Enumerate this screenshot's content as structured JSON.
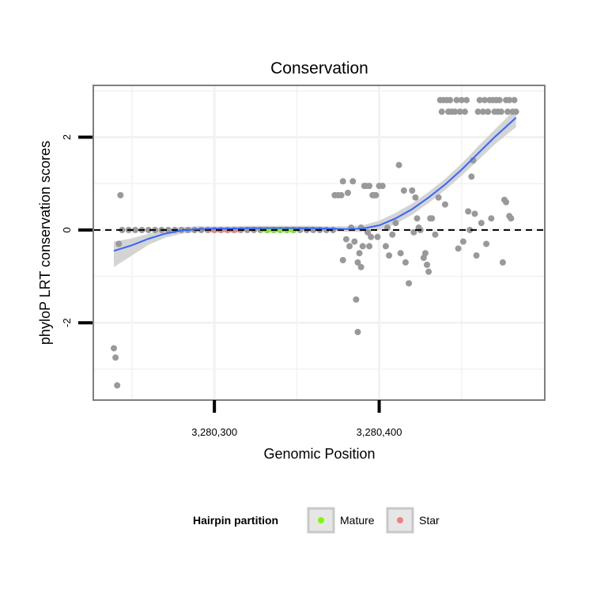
{
  "chart_data": {
    "type": "scatter",
    "title": "Conservation",
    "xlabel": "Genomic Position",
    "ylabel": "phyloP LRT conservation scores",
    "xlim": [
      3280227,
      3280500
    ],
    "ylim": [
      -3.65,
      3.1
    ],
    "x_ticks": [
      {
        "value": 3280300,
        "label": "3,280,300"
      },
      {
        "value": 3280400,
        "label": "3,280,400"
      }
    ],
    "y_ticks": [
      {
        "value": -2,
        "label": "-2"
      },
      {
        "value": 0,
        "label": "0"
      },
      {
        "value": 2,
        "label": "2"
      }
    ],
    "reference_line": {
      "y": 0,
      "style": "dashed"
    },
    "grid": true,
    "points": [
      {
        "x": 3280239,
        "y": -2.55
      },
      {
        "x": 3280240,
        "y": -2.75
      },
      {
        "x": 3280241,
        "y": -3.35
      },
      {
        "x": 3280242,
        "y": -0.3
      },
      {
        "x": 3280243,
        "y": 0.75
      },
      {
        "x": 3280244,
        "y": 0
      },
      {
        "x": 3280248,
        "y": 0
      },
      {
        "x": 3280252,
        "y": 0
      },
      {
        "x": 3280256,
        "y": 0
      },
      {
        "x": 3280260,
        "y": 0
      },
      {
        "x": 3280264,
        "y": 0
      },
      {
        "x": 3280268,
        "y": 0
      },
      {
        "x": 3280272,
        "y": 0
      },
      {
        "x": 3280276,
        "y": 0
      },
      {
        "x": 3280280,
        "y": 0
      },
      {
        "x": 3280284,
        "y": 0
      },
      {
        "x": 3280288,
        "y": 0
      },
      {
        "x": 3280292,
        "y": 0
      },
      {
        "x": 3280296,
        "y": 0
      },
      {
        "x": 3280300,
        "y": 0
      },
      {
        "x": 3280304,
        "y": 0
      },
      {
        "x": 3280308,
        "y": 0
      },
      {
        "x": 3280312,
        "y": 0
      },
      {
        "x": 3280316,
        "y": 0
      },
      {
        "x": 3280320,
        "y": 0
      },
      {
        "x": 3280324,
        "y": 0
      },
      {
        "x": 3280328,
        "y": 0
      },
      {
        "x": 3280332,
        "y": 0
      },
      {
        "x": 3280336,
        "y": 0
      },
      {
        "x": 3280340,
        "y": 0
      },
      {
        "x": 3280344,
        "y": 0
      },
      {
        "x": 3280348,
        "y": 0
      },
      {
        "x": 3280352,
        "y": 0
      },
      {
        "x": 3280356,
        "y": 0
      },
      {
        "x": 3280360,
        "y": 0
      },
      {
        "x": 3280364,
        "y": 0
      },
      {
        "x": 3280368,
        "y": 0
      },
      {
        "x": 3280372,
        "y": 0
      },
      {
        "x": 3280373,
        "y": 0.75
      },
      {
        "x": 3280375,
        "y": 0.75
      },
      {
        "x": 3280377,
        "y": 0.75
      },
      {
        "x": 3280378,
        "y": 1.05
      },
      {
        "x": 3280378,
        "y": -0.65
      },
      {
        "x": 3280380,
        "y": -0.2
      },
      {
        "x": 3280381,
        "y": 0.8
      },
      {
        "x": 3280382,
        "y": -0.35
      },
      {
        "x": 3280383,
        "y": 0.05
      },
      {
        "x": 3280384,
        "y": 1.05
      },
      {
        "x": 3280385,
        "y": -0.25
      },
      {
        "x": 3280386,
        "y": -1.5
      },
      {
        "x": 3280387,
        "y": -2.2
      },
      {
        "x": 3280387,
        "y": -0.7
      },
      {
        "x": 3280388,
        "y": -0.5
      },
      {
        "x": 3280389,
        "y": -0.8
      },
      {
        "x": 3280389,
        "y": 0.05
      },
      {
        "x": 3280390,
        "y": -0.35
      },
      {
        "x": 3280391,
        "y": 0.95
      },
      {
        "x": 3280392,
        "y": 0.95
      },
      {
        "x": 3280393,
        "y": -0.05
      },
      {
        "x": 3280394,
        "y": 0.95
      },
      {
        "x": 3280394,
        "y": -0.35
      },
      {
        "x": 3280395,
        "y": -0.15
      },
      {
        "x": 3280396,
        "y": 0.75
      },
      {
        "x": 3280397,
        "y": 0.75
      },
      {
        "x": 3280398,
        "y": 0.75
      },
      {
        "x": 3280399,
        "y": -0.15
      },
      {
        "x": 3280400,
        "y": 0.95
      },
      {
        "x": 3280402,
        "y": 0.95
      },
      {
        "x": 3280404,
        "y": -0.35
      },
      {
        "x": 3280405,
        "y": 0.05
      },
      {
        "x": 3280406,
        "y": -0.55
      },
      {
        "x": 3280408,
        "y": -0.1
      },
      {
        "x": 3280410,
        "y": 0.15
      },
      {
        "x": 3280412,
        "y": 1.4
      },
      {
        "x": 3280413,
        "y": -0.5
      },
      {
        "x": 3280415,
        "y": 0.85
      },
      {
        "x": 3280416,
        "y": -0.7
      },
      {
        "x": 3280418,
        "y": -1.15
      },
      {
        "x": 3280420,
        "y": 0.85
      },
      {
        "x": 3280421,
        "y": -0.05
      },
      {
        "x": 3280422,
        "y": 0.7
      },
      {
        "x": 3280423,
        "y": 0.25
      },
      {
        "x": 3280424,
        "y": 0.05
      },
      {
        "x": 3280425,
        "y": 0.0
      },
      {
        "x": 3280427,
        "y": -0.6
      },
      {
        "x": 3280428,
        "y": -0.5
      },
      {
        "x": 3280429,
        "y": -0.75
      },
      {
        "x": 3280430,
        "y": -0.9
      },
      {
        "x": 3280431,
        "y": 0.25
      },
      {
        "x": 3280432,
        "y": 0.25
      },
      {
        "x": 3280434,
        "y": -0.1
      },
      {
        "x": 3280436,
        "y": 0.7
      },
      {
        "x": 3280437,
        "y": 2.8
      },
      {
        "x": 3280438,
        "y": 2.55
      },
      {
        "x": 3280439,
        "y": 2.8
      },
      {
        "x": 3280440,
        "y": 0.55
      },
      {
        "x": 3280441,
        "y": 2.8
      },
      {
        "x": 3280442,
        "y": 2.55
      },
      {
        "x": 3280443,
        "y": 2.8
      },
      {
        "x": 3280444,
        "y": 2.55
      },
      {
        "x": 3280446,
        "y": 2.55
      },
      {
        "x": 3280447,
        "y": 2.8
      },
      {
        "x": 3280448,
        "y": -0.4
      },
      {
        "x": 3280449,
        "y": 2.55
      },
      {
        "x": 3280450,
        "y": 2.8
      },
      {
        "x": 3280451,
        "y": -0.25
      },
      {
        "x": 3280452,
        "y": 2.55
      },
      {
        "x": 3280453,
        "y": 2.8
      },
      {
        "x": 3280454,
        "y": 0.4
      },
      {
        "x": 3280455,
        "y": 0.0
      },
      {
        "x": 3280456,
        "y": 1.15
      },
      {
        "x": 3280457,
        "y": 1.5
      },
      {
        "x": 3280458,
        "y": 0.35
      },
      {
        "x": 3280459,
        "y": -0.55
      },
      {
        "x": 3280460,
        "y": 2.55
      },
      {
        "x": 3280461,
        "y": 2.8
      },
      {
        "x": 3280462,
        "y": 0.15
      },
      {
        "x": 3280463,
        "y": 2.55
      },
      {
        "x": 3280464,
        "y": 2.8
      },
      {
        "x": 3280465,
        "y": -0.3
      },
      {
        "x": 3280466,
        "y": 2.55
      },
      {
        "x": 3280467,
        "y": 2.8
      },
      {
        "x": 3280468,
        "y": 0.25
      },
      {
        "x": 3280469,
        "y": 2.8
      },
      {
        "x": 3280470,
        "y": 2.55
      },
      {
        "x": 3280471,
        "y": 2.8
      },
      {
        "x": 3280472,
        "y": 2.55
      },
      {
        "x": 3280473,
        "y": 2.8
      },
      {
        "x": 3280474,
        "y": 2.55
      },
      {
        "x": 3280475,
        "y": -0.7
      },
      {
        "x": 3280476,
        "y": 0.65
      },
      {
        "x": 3280477,
        "y": 0.6
      },
      {
        "x": 3280477,
        "y": 2.8
      },
      {
        "x": 3280478,
        "y": 2.55
      },
      {
        "x": 3280479,
        "y": 2.8
      },
      {
        "x": 3280479,
        "y": 0.3
      },
      {
        "x": 3280480,
        "y": 0.25
      },
      {
        "x": 3280481,
        "y": 2.55
      },
      {
        "x": 3280482,
        "y": 2.8
      },
      {
        "x": 3280483,
        "y": 2.55
      }
    ],
    "highlighted_segments": [
      {
        "group": "Star",
        "x_start": 3280295,
        "x_end": 3280316,
        "y": 0
      },
      {
        "group": "Mature",
        "x_start": 3280328,
        "x_end": 3280350,
        "y": 0
      }
    ],
    "smooth_line": {
      "x": [
        3280239,
        3280250,
        3280260,
        3280270,
        3280280,
        3280290,
        3280300,
        3280310,
        3280320,
        3280330,
        3280340,
        3280350,
        3280360,
        3280370,
        3280380,
        3280390,
        3280400,
        3280410,
        3280420,
        3280430,
        3280440,
        3280450,
        3280460,
        3280470,
        3280483
      ],
      "y": [
        -0.45,
        -0.33,
        -0.19,
        -0.08,
        -0.01,
        0.02,
        0.03,
        0.03,
        0.04,
        0.04,
        0.04,
        0.04,
        0.04,
        0.03,
        0.02,
        0.03,
        0.1,
        0.25,
        0.45,
        0.7,
        0.98,
        1.3,
        1.65,
        2.0,
        2.42
      ],
      "band_upper": [
        -0.25,
        -0.18,
        -0.08,
        0.01,
        0.06,
        0.08,
        0.08,
        0.08,
        0.09,
        0.09,
        0.09,
        0.09,
        0.09,
        0.08,
        0.08,
        0.1,
        0.2,
        0.37,
        0.57,
        0.82,
        1.1,
        1.43,
        1.8,
        2.16,
        2.62
      ],
      "band_lower": [
        -0.8,
        -0.55,
        -0.32,
        -0.17,
        -0.08,
        -0.04,
        -0.02,
        -0.02,
        -0.01,
        -0.01,
        -0.01,
        -0.01,
        -0.01,
        -0.02,
        -0.04,
        -0.04,
        0.0,
        0.13,
        0.33,
        0.58,
        0.86,
        1.17,
        1.5,
        1.84,
        2.22
      ]
    },
    "legend": {
      "title": "Hairpin partition",
      "position": "bottom",
      "items": [
        {
          "label": "Mature",
          "color": "#7CFC00"
        },
        {
          "label": "Star",
          "color": "#F08080"
        }
      ]
    },
    "colors": {
      "points": "#999999",
      "smooth": "#3366FF",
      "band": "#cccccc",
      "panel_border": "#7f7f7f",
      "grid": "#f2f2f2"
    }
  }
}
